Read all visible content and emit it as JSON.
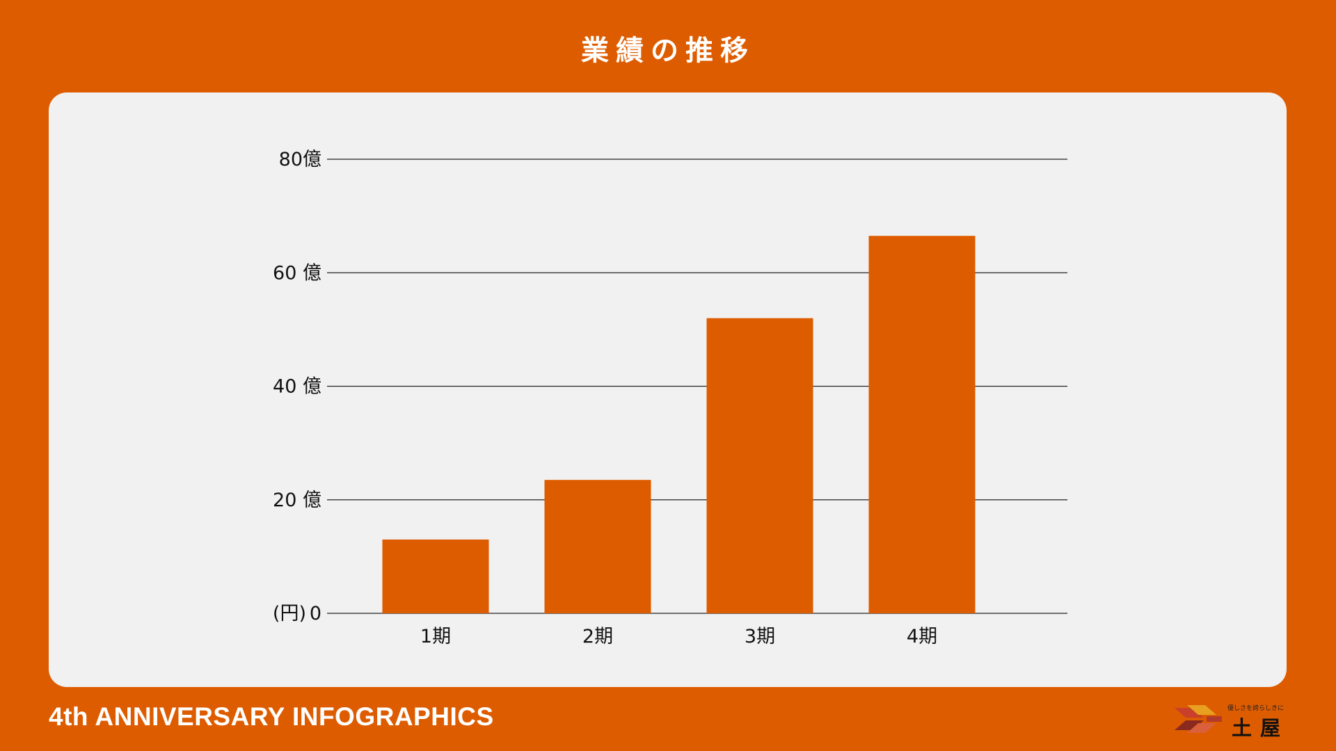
{
  "title": "業績の推移",
  "footer": "4th ANNIVERSARY INFOGRAPHICS",
  "logo": {
    "tagline": "優しさを誇らしきに",
    "name": "土屋"
  },
  "colors": {
    "background": "#DE5C00",
    "panel": "#F1F1F1",
    "bar": "#DE5C00",
    "gridline": "#222222"
  },
  "chart_data": {
    "type": "bar",
    "categories": [
      "1期",
      "2期",
      "3期",
      "4期"
    ],
    "values": [
      13,
      23.5,
      52,
      66.5
    ],
    "y_unit_label": "(円)",
    "y_ticks": [
      {
        "value": 0,
        "label": "0"
      },
      {
        "value": 20,
        "label": "20 億"
      },
      {
        "value": 40,
        "label": "40 億"
      },
      {
        "value": 60,
        "label": "60 億"
      },
      {
        "value": 80,
        "label": "80億"
      }
    ],
    "ylim": [
      0,
      80
    ],
    "grid": true,
    "legend": "none"
  }
}
